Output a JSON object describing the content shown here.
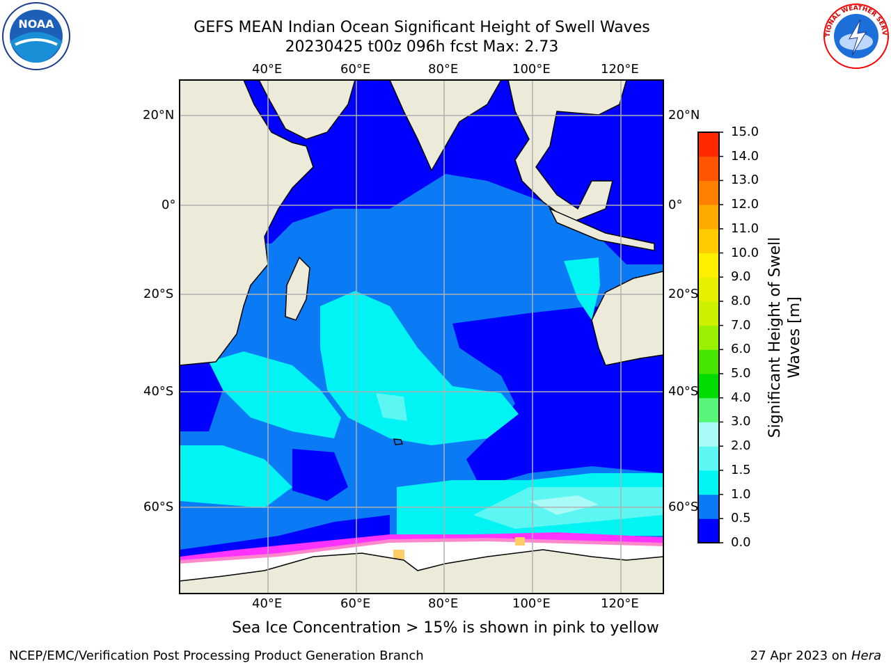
{
  "title": {
    "line1": "GEFS MEAN Indian Ocean Significant Height of Swell Waves",
    "line2": "20230425 t00z 096h fcst   Max: 2.73"
  },
  "logos": {
    "left": "NOAA",
    "right_text": "NATIONAL WEATHER SERVICE"
  },
  "map": {
    "lon_ticks": [
      "40°E",
      "60°E",
      "80°E",
      "100°E",
      "120°E"
    ],
    "lat_ticks_left": [
      "20°N",
      "0°",
      "20°S",
      "40°S",
      "60°S"
    ],
    "lat_ticks_right": [
      "20°N",
      "0°",
      "20°S",
      "40°S",
      "60°S"
    ],
    "land_color": "#ecebda",
    "ocean_colors": {
      "0.0-0.5": "#0000ff",
      "0.5-1.0": "#0a7af5",
      "1.0-1.5": "#00f4f4",
      "1.5-2.0": "#5cf7f2",
      "2.0-3.0": "#a9fbf7"
    },
    "ice_colors": [
      "#ff33ff",
      "#ff88cc",
      "#ffcc66",
      "#ffffff"
    ]
  },
  "colorbar": {
    "title_line1": "Significant Height of Swell",
    "title_line2": "Waves [m]",
    "labels": [
      "15.0",
      "14.0",
      "13.0",
      "12.0",
      "11.0",
      "10.0",
      "9.0",
      "8.0",
      "7.0",
      "6.0",
      "5.0",
      "4.0",
      "3.0",
      "2.0",
      "1.5",
      "1.0",
      "0.5",
      "0.0"
    ],
    "colors_bottom_to_top": [
      "#0000ff",
      "#0a7af5",
      "#00f4f4",
      "#5cf7f2",
      "#a9fbf7",
      "#57f57a",
      "#00dc00",
      "#44e600",
      "#99f000",
      "#ccf000",
      "#e6f000",
      "#fff000",
      "#ffcc00",
      "#ffaa00",
      "#ff8000",
      "#ff5500",
      "#ff2a00"
    ]
  },
  "note": "Sea Ice Concentration > 15% is shown in pink to yellow",
  "footer": {
    "left": "NCEP/EMC/Verification Post Processing Product Generation Branch",
    "right_date": "27 Apr 2023 on ",
    "right_host": "Hera"
  }
}
